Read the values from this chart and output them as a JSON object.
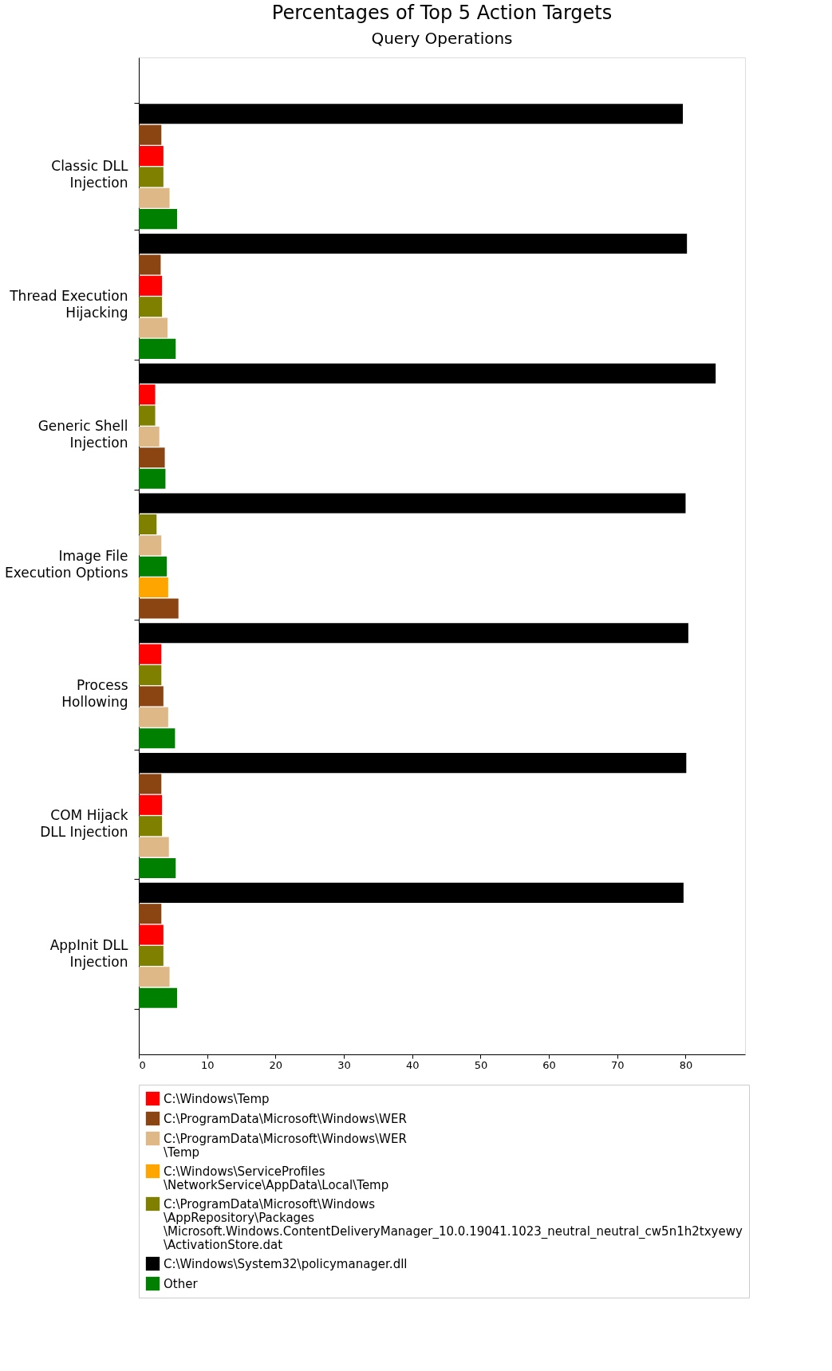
{
  "chart_data": {
    "type": "bar",
    "orientation": "horizontal",
    "title": "Percentages of Top 5 Action Targets",
    "subtitle": "Query Operations",
    "categories": [
      "Classic DLL Injection",
      "Thread Execution Hijacking",
      "Generic Shell Injection",
      "Image File Execution Options",
      "Process Hollowing",
      "COM Hijack DLL Injection",
      "AppInit DLL Injection"
    ],
    "series": [
      {
        "name": "C:\\Windows\\Temp",
        "color": "#ff0000",
        "values": [
          3.6,
          3.4,
          2.4,
          null,
          3.3,
          3.4,
          3.6
        ]
      },
      {
        "name": "C:\\ProgramData\\Microsoft\\Windows\\WER",
        "color": "#8b4513",
        "values": [
          3.3,
          3.2,
          3.8,
          5.8,
          3.6,
          3.3,
          3.3
        ]
      },
      {
        "name": "C:\\ProgramData\\Microsoft\\Windows\\WER\\Temp",
        "color": "#deb887",
        "values": [
          4.5,
          4.2,
          3.0,
          3.3,
          4.3,
          4.4,
          4.5
        ]
      },
      {
        "name": "C:\\Windows\\ServiceProfiles\\NetworkService\\AppData\\Local\\Temp",
        "color": "#ffa500",
        "values": [
          null,
          null,
          null,
          4.3,
          null,
          null,
          null
        ]
      },
      {
        "name": "C:\\ProgramData\\Microsoft\\Windows\\AppRepository\\Packages\\Microsoft.Windows.ContentDeliveryManager_10.0.19041.1023_neutral_neutral_cw5n1h2txyewy\\ActivationStore.dat",
        "color": "#808000",
        "values": [
          3.6,
          3.4,
          2.4,
          2.6,
          3.3,
          3.4,
          3.6
        ]
      },
      {
        "name": "C:\\Windows\\System32\\policymanager.dll",
        "color": "#000000",
        "values": [
          79.6,
          80.2,
          84.4,
          80.0,
          80.4,
          80.1,
          79.7
        ]
      },
      {
        "name": "Other",
        "color": "#008000",
        "values": [
          5.6,
          5.4,
          3.9,
          4.1,
          5.3,
          5.4,
          5.6
        ]
      }
    ],
    "xlim": [
      0,
      88.7
    ],
    "xticks": [
      0,
      10,
      20,
      30,
      40,
      50,
      60,
      70,
      80
    ],
    "grid": false,
    "legend": "bottom"
  }
}
